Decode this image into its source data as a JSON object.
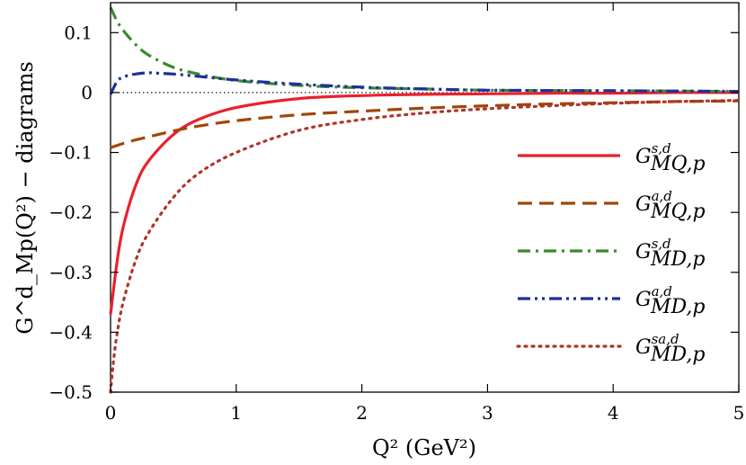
{
  "chart_data": {
    "type": "line",
    "xlabel": "Q² (GeV²)",
    "ylabel": "G^d_Mp(Q²) − diagrams",
    "xlim": [
      0,
      5
    ],
    "ylim": [
      -0.5,
      0.15
    ],
    "xticks": [
      "0",
      "1",
      "2",
      "3",
      "4",
      "5"
    ],
    "xtick_values": [
      0,
      1,
      2,
      3,
      4,
      5
    ],
    "yticks": [
      "0.1",
      "0",
      "−0.1",
      "−0.2",
      "−0.3",
      "−0.4",
      "−0.5"
    ],
    "ytick_values": [
      0.1,
      0,
      -0.1,
      -0.2,
      -0.3,
      -0.4,
      -0.5
    ],
    "zero_line": true,
    "legend_position": "right",
    "series": [
      {
        "name": "G^{s,d}_{MQ,p}",
        "label_main": "G",
        "label_sup": "s,d",
        "label_sub": "MQ,p",
        "color": "#e8212e",
        "dash": "solid",
        "x": [
          0,
          0.05,
          0.1,
          0.2,
          0.3,
          0.5,
          0.7,
          1.0,
          1.5,
          2.0,
          2.5,
          3.0,
          3.5,
          4.0,
          4.5,
          5.0
        ],
        "y": [
          -0.37,
          -0.285,
          -0.225,
          -0.155,
          -0.115,
          -0.07,
          -0.045,
          -0.025,
          -0.01,
          -0.005,
          -0.003,
          -0.002,
          -0.001,
          -0.001,
          0.0,
          0.0
        ]
      },
      {
        "name": "G^{a,d}_{MQ,p}",
        "label_main": "G",
        "label_sup": "a,d",
        "label_sub": "MQ,p",
        "color": "#a0470a",
        "dash": "dashed",
        "x": [
          0,
          0.1,
          0.2,
          0.3,
          0.5,
          0.7,
          1.0,
          1.5,
          2.0,
          2.5,
          3.0,
          3.5,
          4.0,
          4.5,
          5.0
        ],
        "y": [
          -0.092,
          -0.085,
          -0.079,
          -0.074,
          -0.064,
          -0.056,
          -0.047,
          -0.037,
          -0.031,
          -0.026,
          -0.022,
          -0.019,
          -0.017,
          -0.015,
          -0.014
        ]
      },
      {
        "name": "G^{s,d}_{MD,p}",
        "label_main": "G",
        "label_sup": "s,d",
        "label_sub": "MD,p",
        "color": "#3a8a2e",
        "dash": "dashdot",
        "x": [
          0,
          0.05,
          0.1,
          0.2,
          0.3,
          0.5,
          0.7,
          1.0,
          1.5,
          2.0,
          2.5,
          3.0,
          4.0,
          5.0
        ],
        "y": [
          0.142,
          0.12,
          0.104,
          0.08,
          0.063,
          0.042,
          0.031,
          0.02,
          0.012,
          0.008,
          0.006,
          0.004,
          0.003,
          0.002
        ]
      },
      {
        "name": "G^{a,d}_{MD,p}",
        "label_main": "G",
        "label_sup": "a,d",
        "label_sub": "MD,p",
        "color": "#1f2f99",
        "dash": "dashdotdot",
        "x": [
          0,
          0.05,
          0.1,
          0.2,
          0.3,
          0.4,
          0.5,
          0.7,
          1.0,
          1.5,
          2.0,
          2.5,
          3.0,
          4.0,
          5.0
        ],
        "y": [
          -0.003,
          0.018,
          0.026,
          0.031,
          0.033,
          0.032,
          0.031,
          0.027,
          0.021,
          0.014,
          0.009,
          0.006,
          0.004,
          0.003,
          0.002
        ]
      },
      {
        "name": "G^{sa,d}_{MD,p}",
        "label_main": "G",
        "label_sup": "sa,d",
        "label_sub": "MD,p",
        "color": "#b0342a",
        "dash": "dotted",
        "x": [
          0,
          0.02,
          0.05,
          0.1,
          0.2,
          0.3,
          0.5,
          0.7,
          1.0,
          1.5,
          2.0,
          2.5,
          3.0,
          3.5,
          4.0,
          4.5,
          5.0
        ],
        "y": [
          -0.5,
          -0.455,
          -0.405,
          -0.35,
          -0.28,
          -0.235,
          -0.175,
          -0.135,
          -0.1,
          -0.063,
          -0.045,
          -0.034,
          -0.027,
          -0.022,
          -0.018,
          -0.015,
          -0.013
        ]
      }
    ]
  }
}
